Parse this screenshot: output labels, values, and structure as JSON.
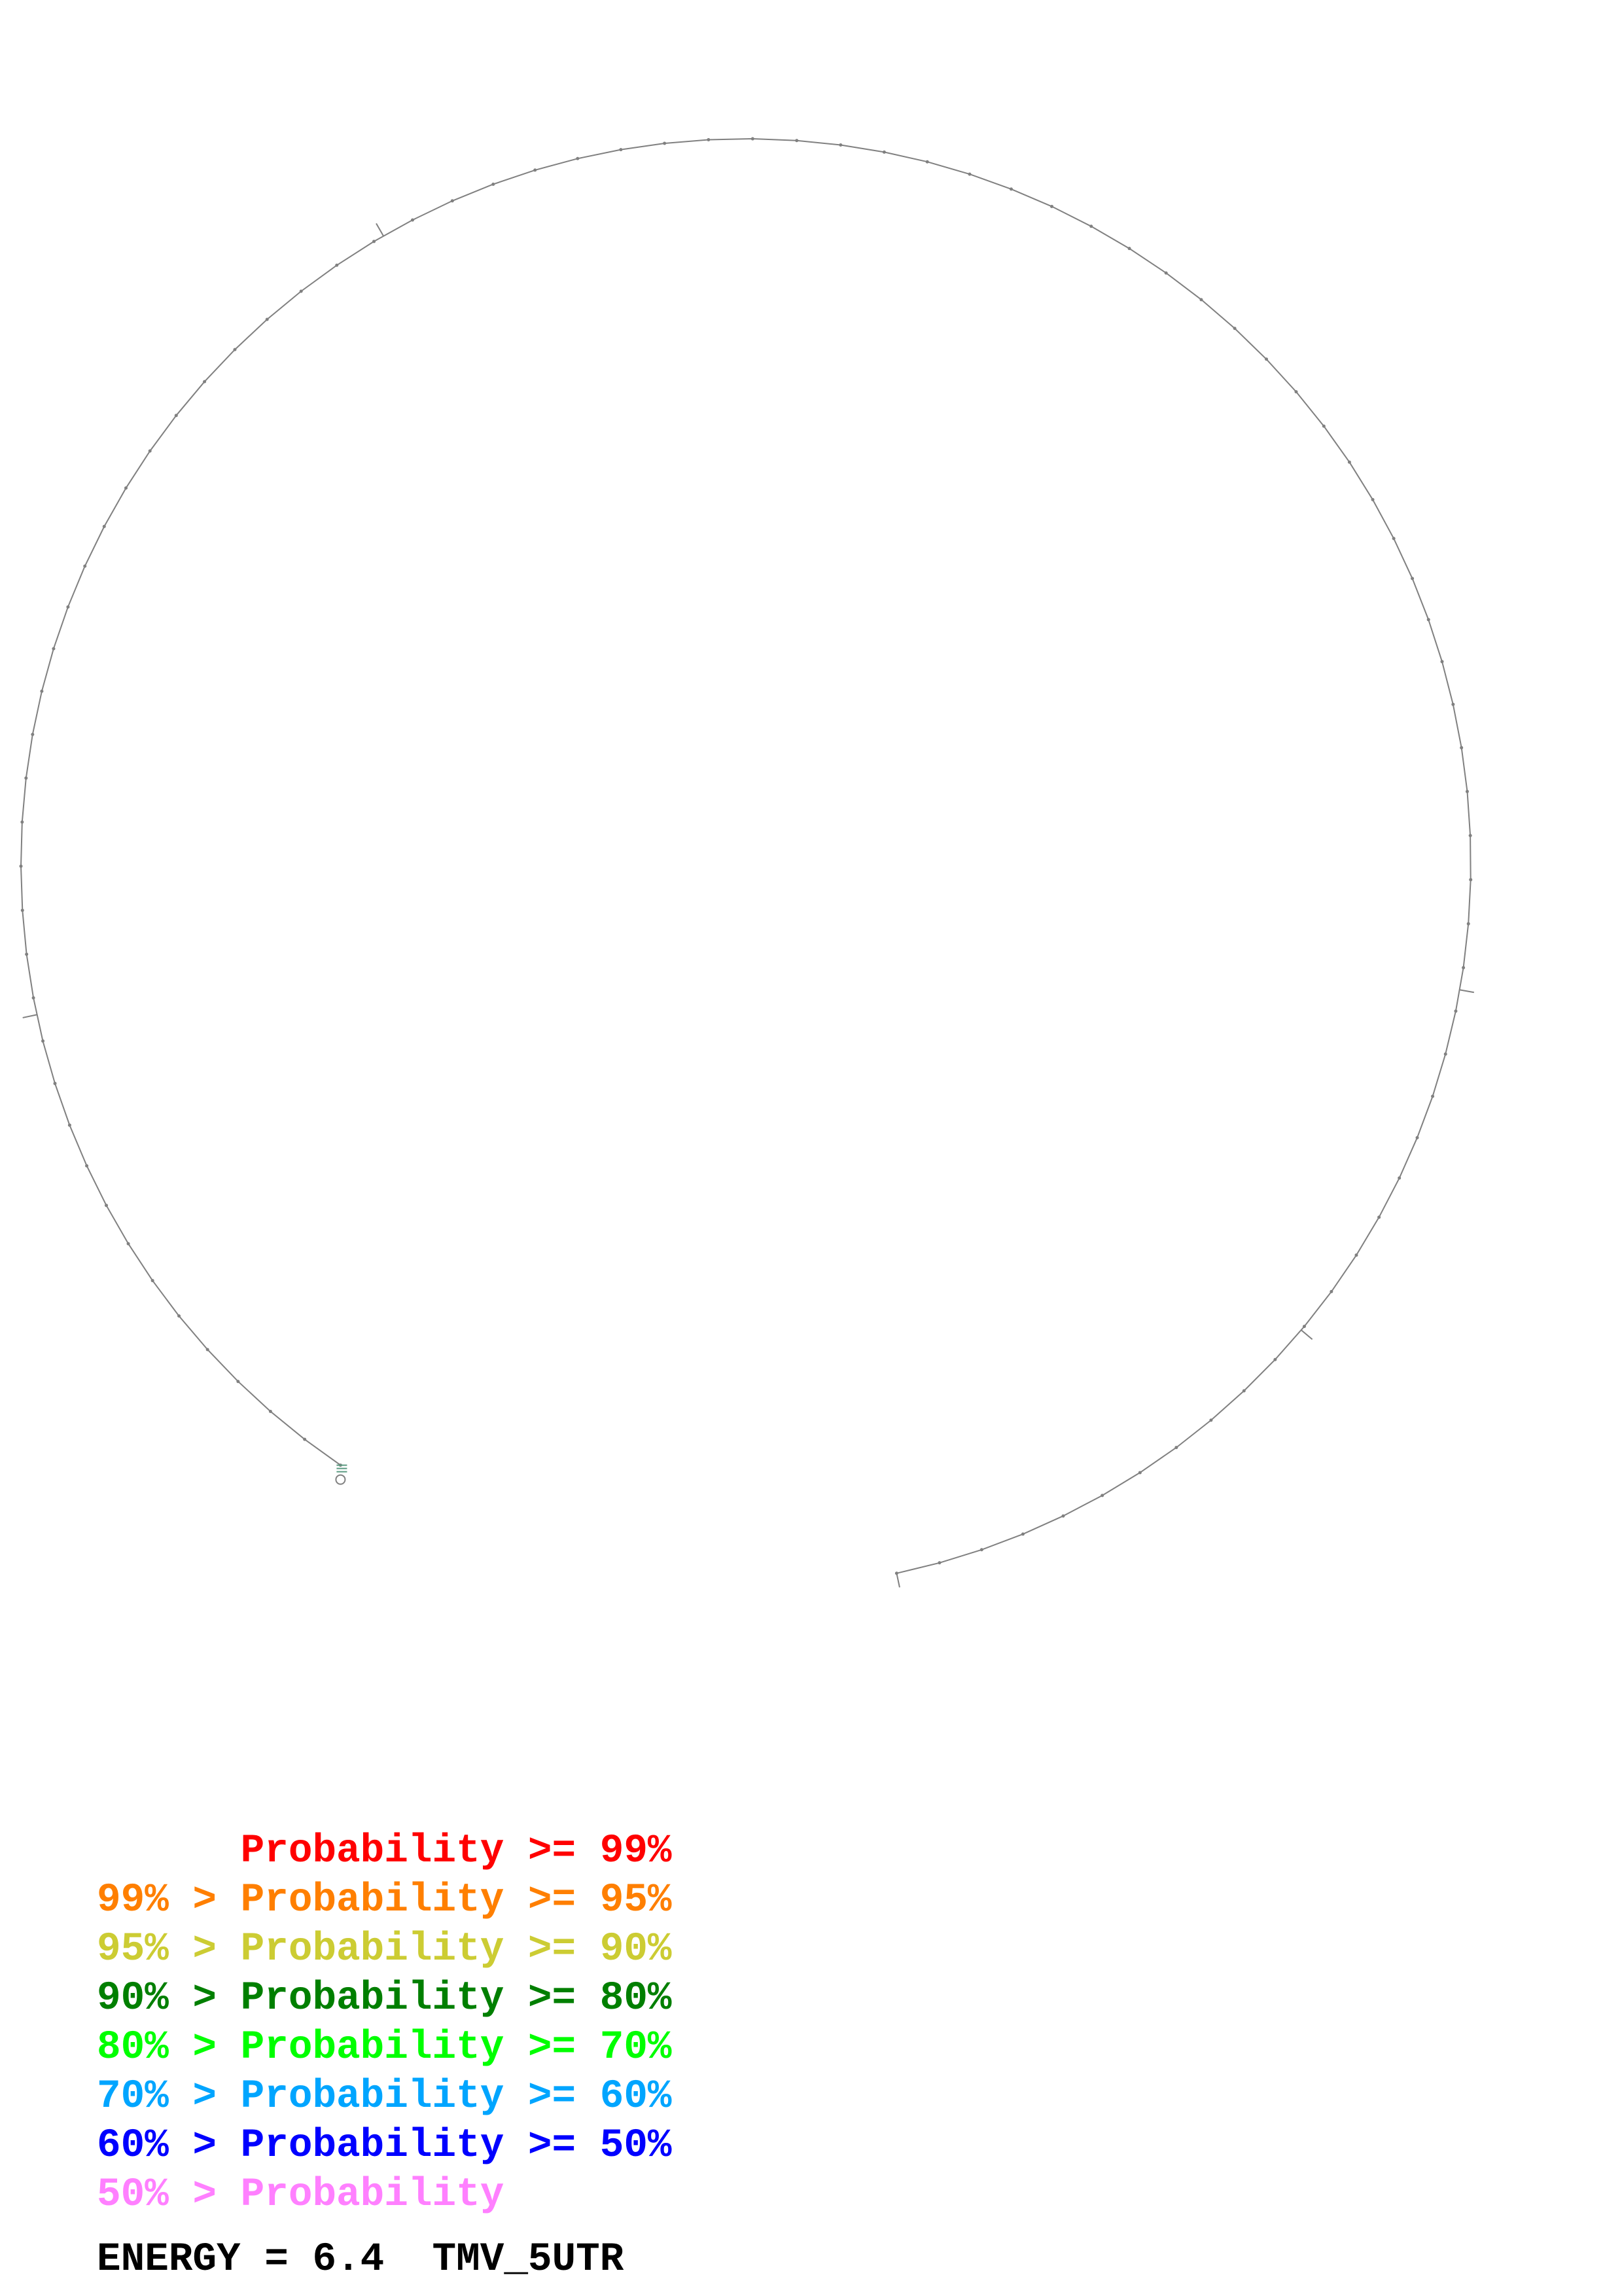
{
  "legend": [
    {
      "text": "      Probability >= 99%",
      "color": "#ff0000"
    },
    {
      "text": "99% > Probability >= 95%",
      "color": "#ff7f00"
    },
    {
      "text": "95% > Probability >= 90%",
      "color": "#cccc33"
    },
    {
      "text": "90% > Probability >= 80%",
      "color": "#007f00"
    },
    {
      "text": "80% > Probability >= 70%",
      "color": "#00ff00"
    },
    {
      "text": "70% > Probability >= 60%",
      "color": "#00a5ff"
    },
    {
      "text": "60% > Probability >= 50%",
      "color": "#0000ff"
    },
    {
      "text": "50% > Probability",
      "color": "#ff80ff"
    }
  ],
  "footer": {
    "energy_label": "ENERGY = 6.4",
    "sequence_name": "TMV_5UTR"
  },
  "structure": {
    "backbone_color": "#808080",
    "stem_color": "#5a9a80"
  }
}
